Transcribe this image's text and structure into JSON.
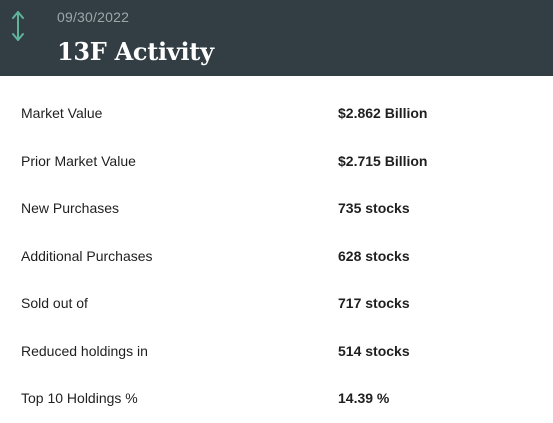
{
  "header": {
    "icon": "up-down-arrows-icon",
    "date": "09/30/2022",
    "title": "13F Activity",
    "icon_color": "#5fb39b",
    "background_color": "#323d44"
  },
  "rows": [
    {
      "label": "Market Value",
      "value": "$2.862 Billion"
    },
    {
      "label": "Prior Market Value",
      "value": "$2.715 Billion"
    },
    {
      "label": "New Purchases",
      "value": "735 stocks"
    },
    {
      "label": "Additional Purchases",
      "value": "628 stocks"
    },
    {
      "label": "Sold out of",
      "value": "717 stocks"
    },
    {
      "label": "Reduced holdings in",
      "value": "514 stocks"
    },
    {
      "label": "Top 10 Holdings %",
      "value": "14.39 %"
    }
  ]
}
